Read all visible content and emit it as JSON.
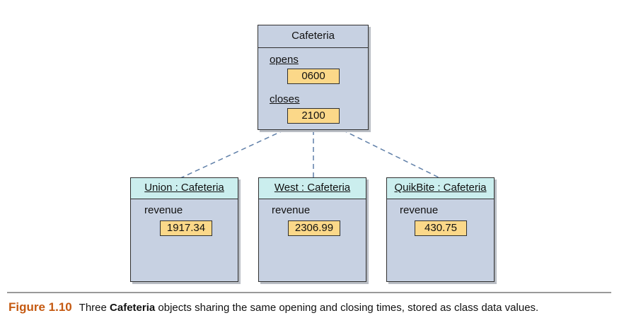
{
  "class_box": {
    "name": "Cafeteria",
    "attributes": [
      {
        "name": "opens",
        "value": "0600"
      },
      {
        "name": "closes",
        "value": "2100"
      }
    ]
  },
  "objects": [
    {
      "title": "Union : Cafeteria",
      "attribute": "revenue",
      "value": "1917.34"
    },
    {
      "title": "West : Cafeteria",
      "attribute": "revenue",
      "value": "2306.99"
    },
    {
      "title": "QuikBite : Cafeteria",
      "attribute": "revenue",
      "value": "430.75"
    }
  ],
  "colors": {
    "class_fill": "#c7d1e2",
    "object_header_fill": "#cbeeee",
    "value_fill": "#fbd889",
    "link_color": "#5f7fa8",
    "figure_number_color": "#c55a12"
  },
  "caption": {
    "figure_number": "Figure 1.10",
    "text_before": "Three",
    "bold_term": "Cafeteria",
    "text_after": "objects sharing the same opening and closing times, stored as class data values."
  }
}
